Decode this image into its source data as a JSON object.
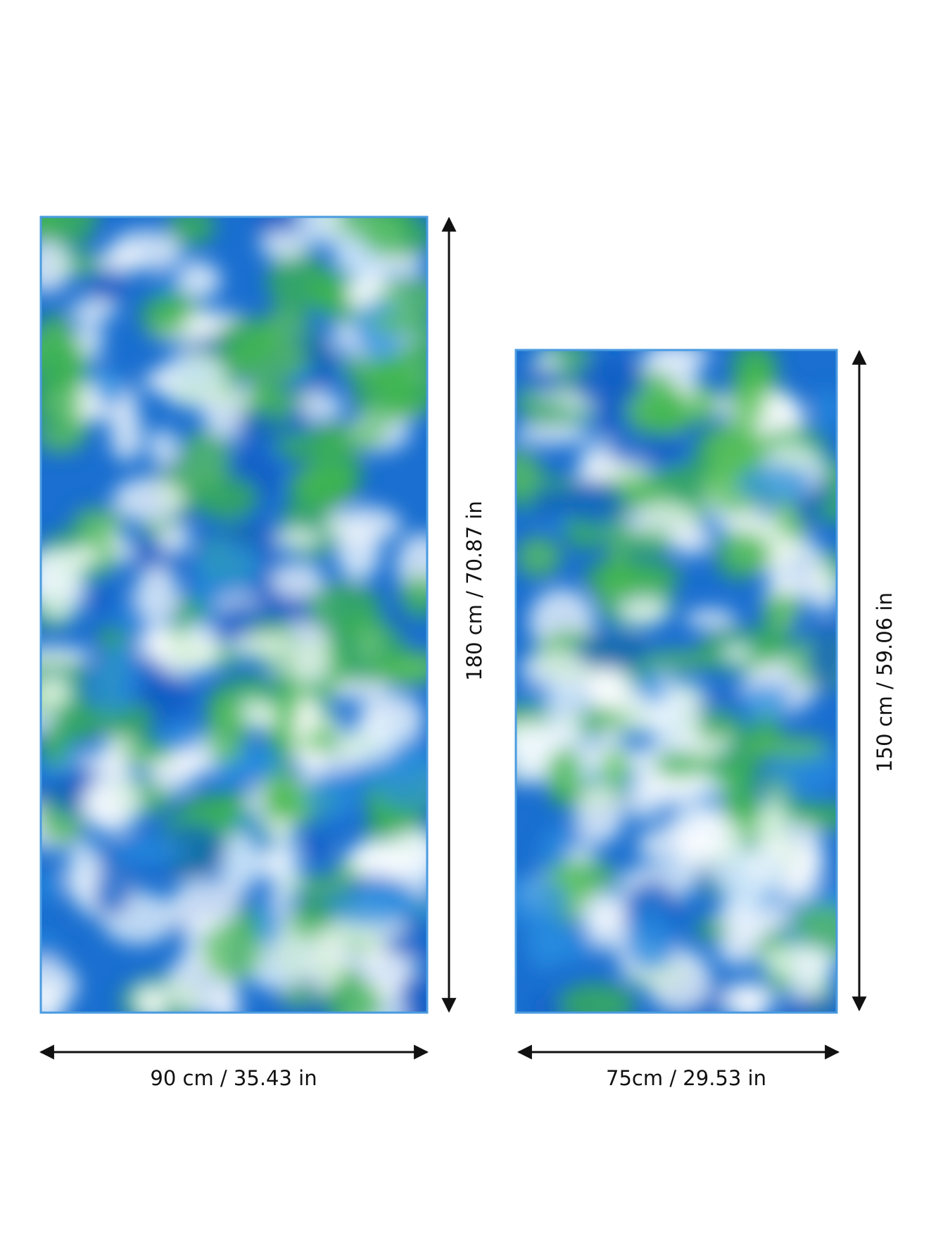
{
  "large_towel": {
    "width_label": "90 cm / 35.43 in",
    "height_label": "180 cm / 70.87 in"
  },
  "small_towel": {
    "width_label": "75cm / 29.53 in",
    "height_label": "150 cm / 59.06 in"
  }
}
